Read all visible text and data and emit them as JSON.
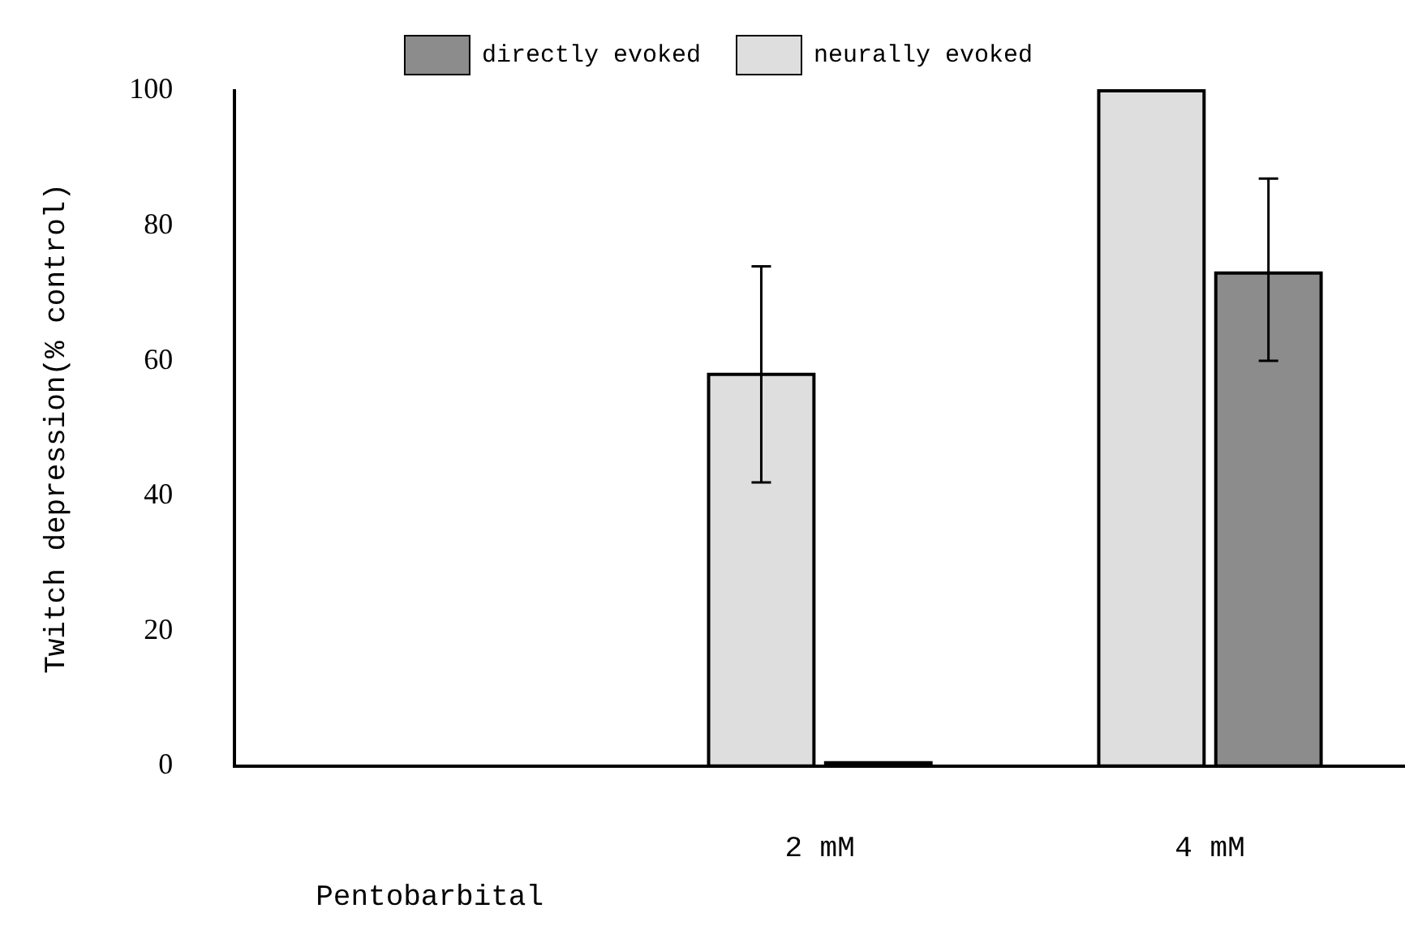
{
  "chart_data": {
    "type": "bar",
    "ylabel": "Twitch depression(% control)",
    "xlabel": "Pentobarbital",
    "categories": [
      null,
      "2 mM",
      "4 mM"
    ],
    "series": [
      {
        "name": "neurally evoked",
        "color": "#dedede",
        "values": [
          null,
          58,
          100
        ],
        "errors": [
          null,
          [
            42,
            74
          ],
          null
        ]
      },
      {
        "name": "directly evoked",
        "color": "#8c8c8c",
        "values": [
          null,
          0.5,
          73
        ],
        "errors": [
          null,
          null,
          [
            60,
            87
          ]
        ]
      }
    ],
    "ylim": [
      0,
      100
    ],
    "yticks": [
      0,
      20,
      40,
      60,
      80,
      100
    ],
    "grid": false,
    "legend": "top"
  }
}
